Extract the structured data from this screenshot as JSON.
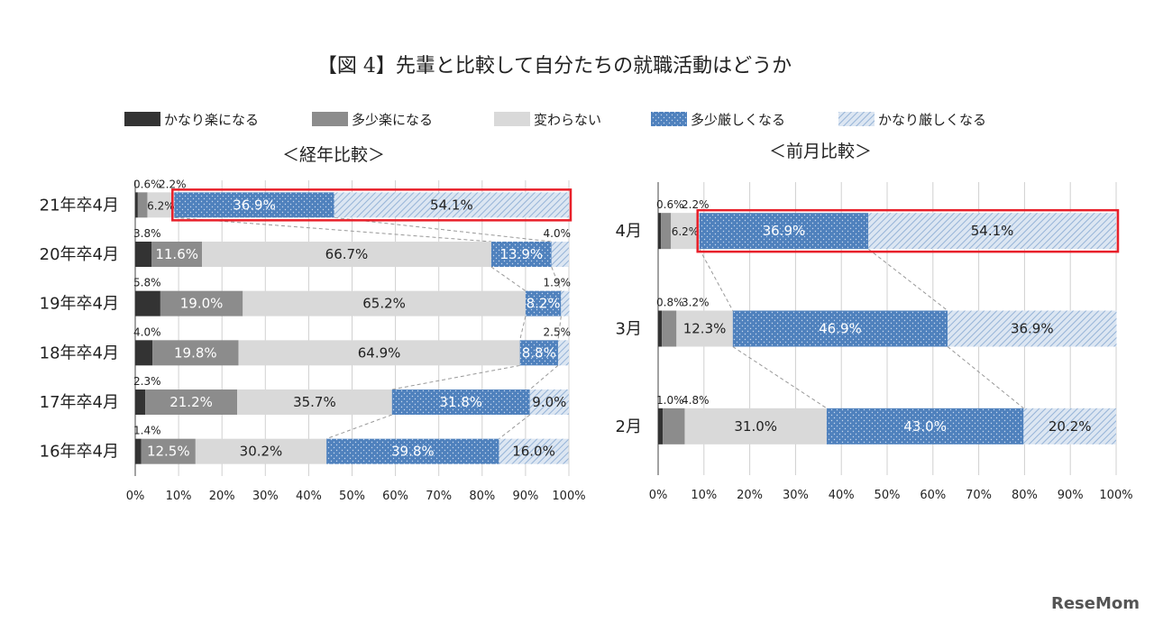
{
  "title": "【図 4】先輩と比較して自分たちの就職活動はどうか",
  "watermark": "ReseMom",
  "legend": [
    {
      "label": "かなり楽になる",
      "color": "#333333"
    },
    {
      "label": "多少楽になる",
      "color": "#8c8c8c"
    },
    {
      "label": "変わらない",
      "color": "#d9d9d9"
    },
    {
      "label": "多少厳しくなる",
      "color": "#4f81bd"
    },
    {
      "label": "かなり厳しくなる",
      "color": "#b8cce4"
    }
  ],
  "chart_data": [
    {
      "type": "bar",
      "orientation": "horizontal",
      "stacked": true,
      "subtitle": "＜経年比較＞",
      "categories": [
        "21年卒4月",
        "20年卒4月",
        "19年卒4月",
        "18年卒4月",
        "17年卒4月",
        "16年卒4月"
      ],
      "xlim": [
        0,
        100
      ],
      "xticks": [
        "0%",
        "10%",
        "20%",
        "30%",
        "40%",
        "50%",
        "60%",
        "70%",
        "80%",
        "90%",
        "100%"
      ],
      "grid": true,
      "highlight": {
        "category": "21年卒4月",
        "series": [
          "多少厳しくなる",
          "かなり厳しくなる"
        ],
        "color": "#e8202a"
      },
      "series": [
        {
          "name": "かなり楽になる",
          "values": [
            0.6,
            3.8,
            5.8,
            4.0,
            2.3,
            1.4
          ]
        },
        {
          "name": "多少楽になる",
          "values": [
            2.2,
            11.6,
            19.0,
            19.8,
            21.2,
            12.5
          ]
        },
        {
          "name": "変わらない",
          "values": [
            6.2,
            66.7,
            65.2,
            64.9,
            35.7,
            30.2
          ]
        },
        {
          "name": "多少厳しくなる",
          "values": [
            36.9,
            13.9,
            8.2,
            8.8,
            31.8,
            39.8
          ]
        },
        {
          "name": "かなり厳しくなる",
          "values": [
            54.1,
            4.0,
            1.9,
            2.5,
            9.0,
            16.0
          ]
        }
      ],
      "labels": [
        [
          "0.6%",
          "2.2%",
          "6.2%",
          "36.9%",
          "54.1%"
        ],
        [
          "3.8%",
          "11.6%",
          "66.7%",
          "13.9%",
          "4.0%"
        ],
        [
          "5.8%",
          "19.0%",
          "65.2%",
          "8.2%",
          "1.9%"
        ],
        [
          "4.0%",
          "19.8%",
          "64.9%",
          "8.8%",
          "2.5%"
        ],
        [
          "2.3%",
          "21.2%",
          "35.7%",
          "31.8%",
          "9.0%"
        ],
        [
          "1.4%",
          "12.5%",
          "30.2%",
          "39.8%",
          "16.0%"
        ]
      ]
    },
    {
      "type": "bar",
      "orientation": "horizontal",
      "stacked": true,
      "subtitle": "＜前月比較＞",
      "categories": [
        "4月",
        "3月",
        "2月"
      ],
      "xlim": [
        0,
        100
      ],
      "xticks": [
        "0%",
        "10%",
        "20%",
        "30%",
        "40%",
        "50%",
        "60%",
        "70%",
        "80%",
        "90%",
        "100%"
      ],
      "grid": true,
      "highlight": {
        "category": "4月",
        "series": [
          "多少厳しくなる",
          "かなり厳しくなる"
        ],
        "color": "#e8202a"
      },
      "series": [
        {
          "name": "かなり楽になる",
          "values": [
            0.6,
            0.8,
            1.0
          ]
        },
        {
          "name": "多少楽になる",
          "values": [
            2.2,
            3.2,
            4.8
          ]
        },
        {
          "name": "変わらない",
          "values": [
            6.2,
            12.3,
            31.0
          ]
        },
        {
          "name": "多少厳しくなる",
          "values": [
            36.9,
            46.9,
            43.0
          ]
        },
        {
          "name": "かなり厳しくなる",
          "values": [
            54.1,
            36.9,
            20.2
          ]
        }
      ],
      "labels": [
        [
          "0.6%",
          "2.2%",
          "6.2%",
          "36.9%",
          "54.1%"
        ],
        [
          "0.8%",
          "3.2%",
          "12.3%",
          "46.9%",
          "36.9%"
        ],
        [
          "1.0%",
          "4.8%",
          "31.0%",
          "43.0%",
          "20.2%"
        ]
      ]
    }
  ]
}
